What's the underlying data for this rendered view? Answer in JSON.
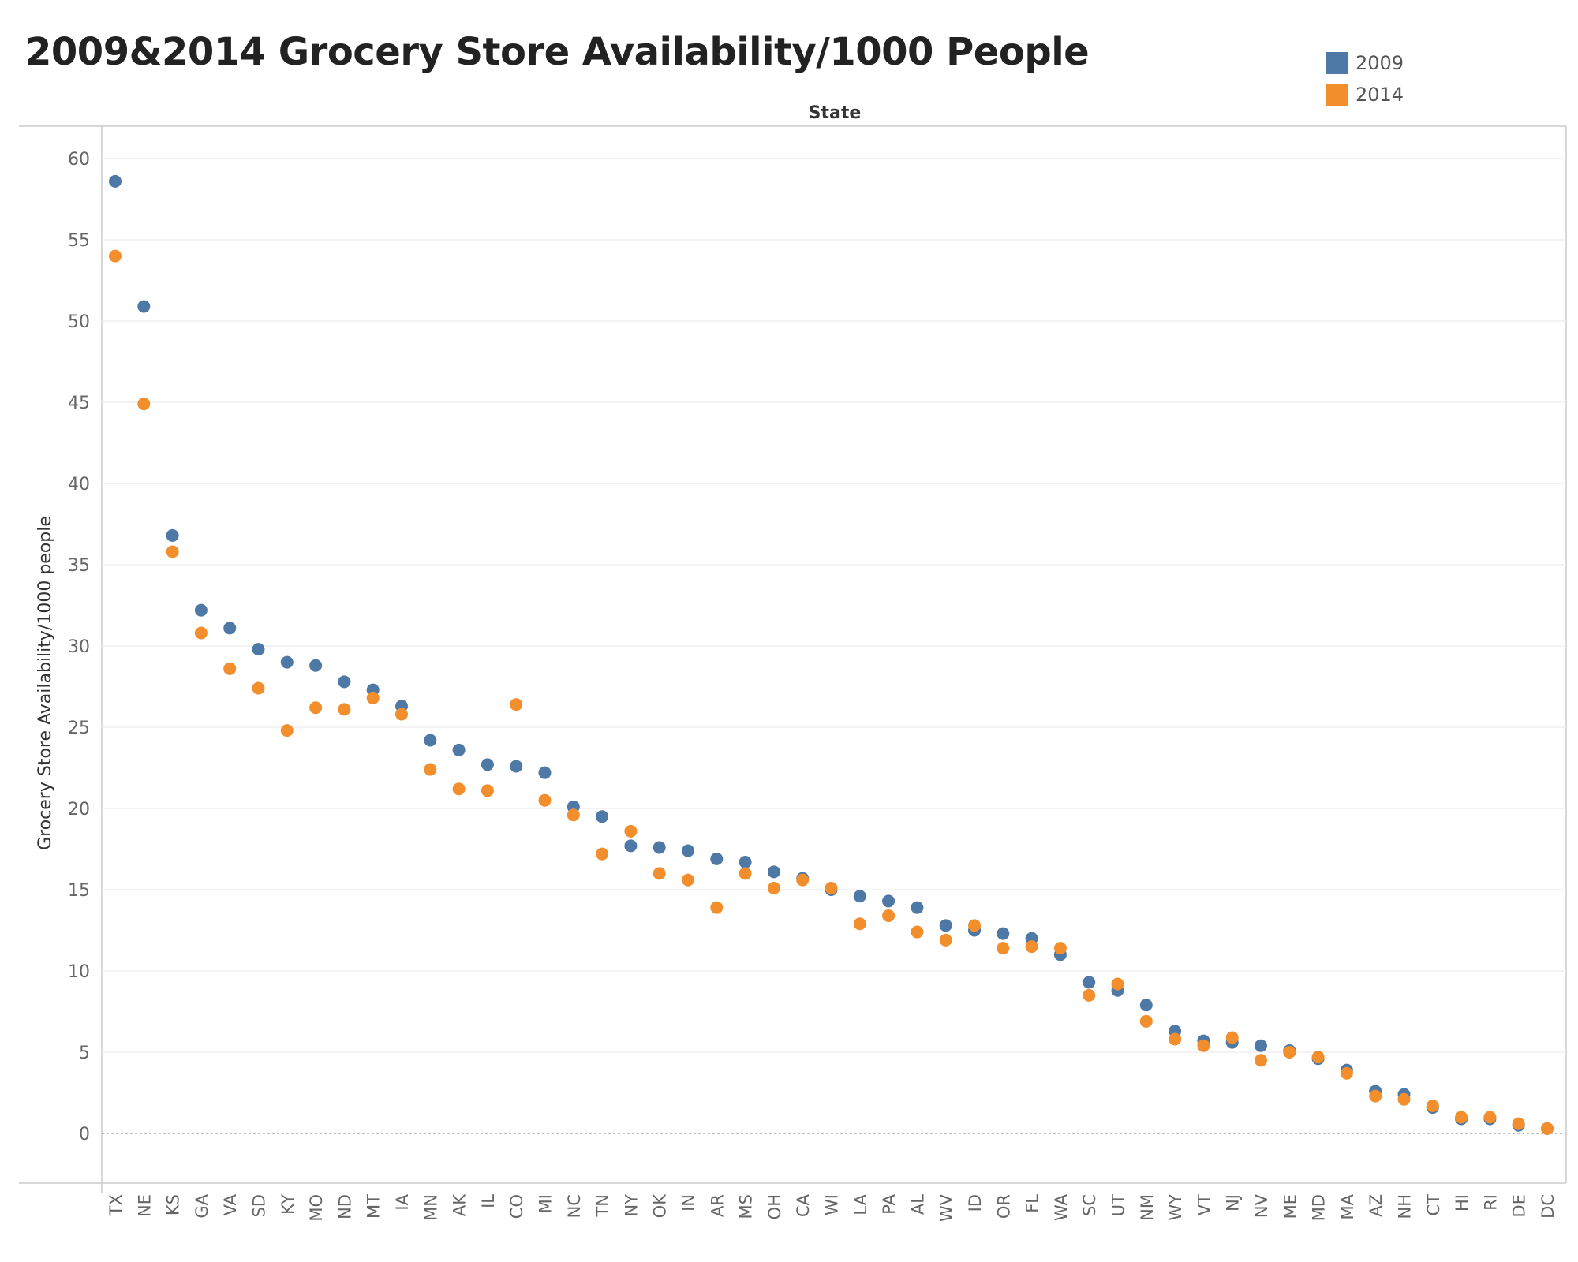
{
  "chart_data": {
    "type": "scatter",
    "title": "2009&2014 Grocery Store Availability/1000 People",
    "xlabel": "State",
    "ylabel": "Grocery Store Availability/1000 people",
    "ylim": [
      -3,
      62
    ],
    "yticks": [
      0,
      5,
      10,
      15,
      20,
      25,
      30,
      35,
      40,
      45,
      50,
      55,
      60
    ],
    "grid": true,
    "legend": "top-right",
    "categories": [
      "TX",
      "NE",
      "KS",
      "GA",
      "VA",
      "SD",
      "KY",
      "MO",
      "ND",
      "MT",
      "IA",
      "MN",
      "AK",
      "IL",
      "CO",
      "MI",
      "NC",
      "TN",
      "NY",
      "OK",
      "IN",
      "AR",
      "MS",
      "OH",
      "CA",
      "WI",
      "LA",
      "PA",
      "AL",
      "WV",
      "ID",
      "OR",
      "FL",
      "WA",
      "SC",
      "UT",
      "NM",
      "WY",
      "VT",
      "NJ",
      "NV",
      "ME",
      "MD",
      "MA",
      "AZ",
      "NH",
      "CT",
      "HI",
      "RI",
      "DE",
      "DC"
    ],
    "series": [
      {
        "name": "2009",
        "color": "#4e79a7",
        "values": [
          58.6,
          50.9,
          36.8,
          32.2,
          31.1,
          29.8,
          29.0,
          28.8,
          27.8,
          27.3,
          26.3,
          24.2,
          23.6,
          22.7,
          22.6,
          22.2,
          20.1,
          19.5,
          17.7,
          17.6,
          17.4,
          16.9,
          16.7,
          16.1,
          15.7,
          15.0,
          14.6,
          14.3,
          13.9,
          12.8,
          12.5,
          12.3,
          12.0,
          11.0,
          9.3,
          8.8,
          7.9,
          6.3,
          5.7,
          5.6,
          5.4,
          5.1,
          4.6,
          3.9,
          2.6,
          2.4,
          1.6,
          0.9,
          0.9,
          0.5,
          0.3
        ]
      },
      {
        "name": "2014",
        "color": "#f28e2b",
        "values": [
          54.0,
          44.9,
          35.8,
          30.8,
          28.6,
          27.4,
          24.8,
          26.2,
          26.1,
          26.8,
          25.8,
          22.4,
          21.2,
          21.1,
          26.4,
          20.5,
          19.6,
          17.2,
          18.6,
          16.0,
          15.6,
          13.9,
          16.0,
          15.1,
          15.6,
          15.1,
          12.9,
          13.4,
          12.4,
          11.9,
          12.8,
          11.4,
          11.5,
          11.4,
          8.5,
          9.2,
          6.9,
          5.8,
          5.4,
          5.9,
          4.5,
          5.0,
          4.7,
          3.7,
          2.3,
          2.1,
          1.7,
          1.0,
          1.0,
          0.6,
          0.3
        ]
      }
    ]
  }
}
